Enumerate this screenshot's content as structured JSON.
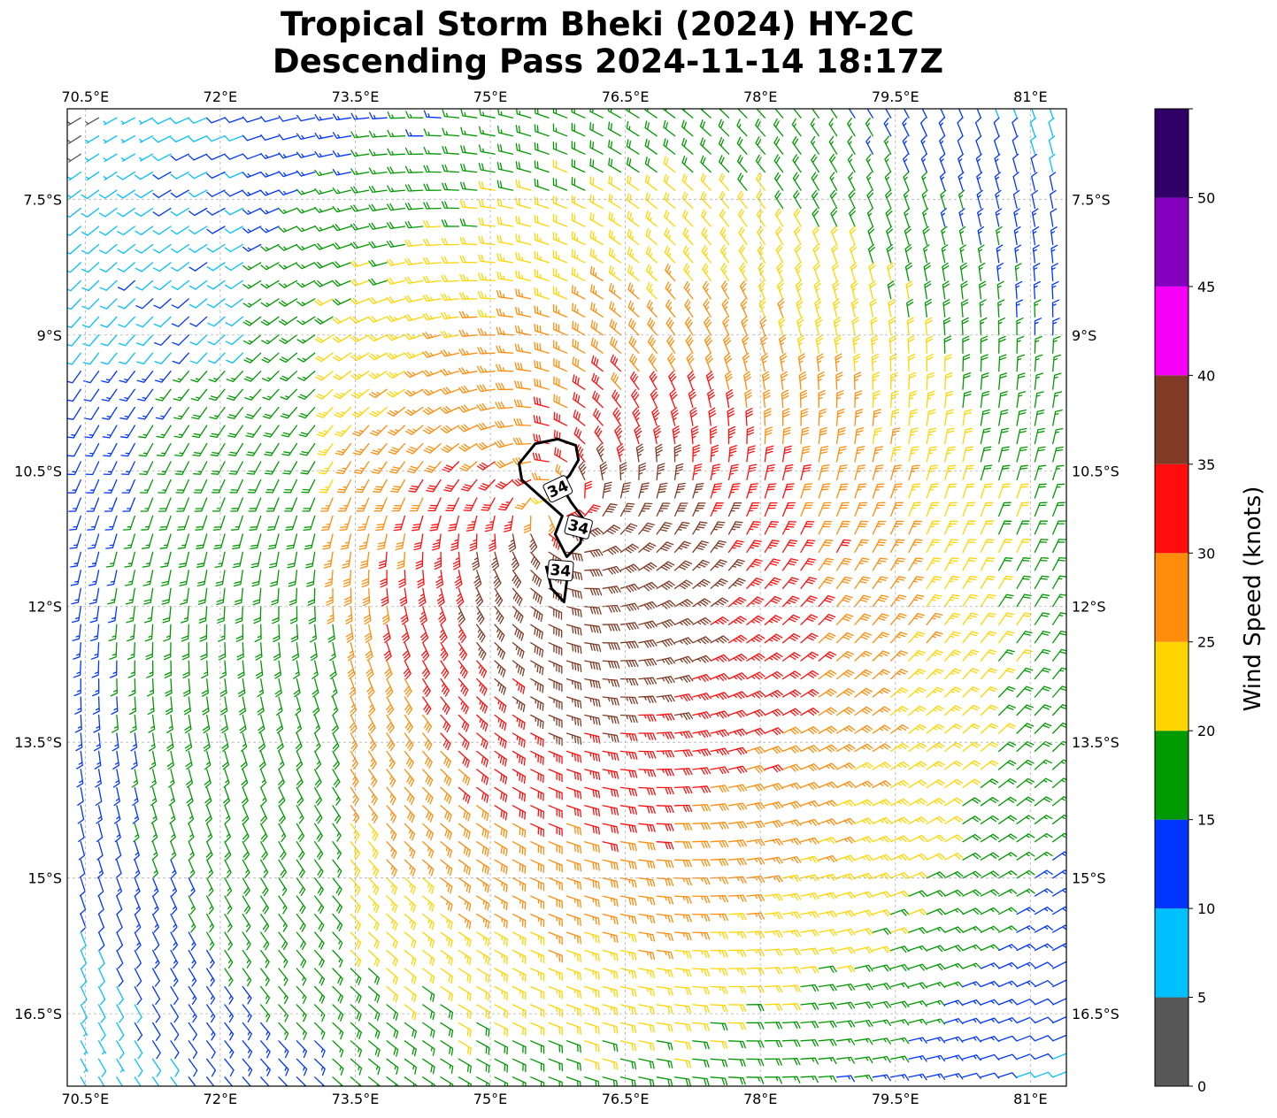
{
  "title": {
    "line1": "Tropical Storm Bheki (2024) HY-2C",
    "line2": "Descending Pass 2024-11-14 18:17Z"
  },
  "chart_data": {
    "type": "wind_barb_map",
    "grid": true,
    "lon_range": [
      70.3,
      81.4
    ],
    "lat_range": [
      -17.3,
      -6.5
    ],
    "lon_ticks": [
      70.5,
      72,
      73.5,
      75,
      76.5,
      78,
      79.5,
      81
    ],
    "lon_tick_labels": [
      "70.5°E",
      "72°E",
      "73.5°E",
      "75°E",
      "76.5°E",
      "78°E",
      "79.5°E",
      "81°E"
    ],
    "lat_ticks": [
      -7.5,
      -9,
      -10.5,
      -12,
      -13.5,
      -15,
      -16.5
    ],
    "lat_tick_labels": [
      "7.5°S",
      "9°S",
      "10.5°S",
      "12°S",
      "13.5°S",
      "15°S",
      "16.5°S"
    ],
    "storm_center": {
      "lon": 75.75,
      "lat": -10.9
    },
    "max_wind_kt": 39,
    "wind_field": "Cyclonic (clockwise, Southern Hemisphere) circulation centered near 75.75°E 10.9°S; 25-35 kt ring close to center, 20-25 kt to the south and east, 10-20 kt to the west and north-west.",
    "contour": {
      "level": 34,
      "label": "34"
    },
    "colorbar": {
      "label": "Wind Speed (knots)",
      "bounds": [
        0,
        5,
        10,
        15,
        20,
        25,
        30,
        35,
        40,
        45,
        50,
        55
      ],
      "tick_values": [
        0,
        5,
        10,
        15,
        20,
        25,
        30,
        35,
        40,
        45,
        50
      ],
      "tick_labels": [
        "0",
        "5",
        "10",
        "15",
        "20",
        "25",
        "30",
        "35",
        "40",
        "45",
        "50"
      ],
      "colors": [
        "#585858",
        "#00bfff",
        "#0035ff",
        "#009900",
        "#ffd500",
        "#ff8c0a",
        "#ff0d0d",
        "#7f3b26",
        "#f700f7",
        "#8300bf",
        "#300066"
      ]
    }
  }
}
